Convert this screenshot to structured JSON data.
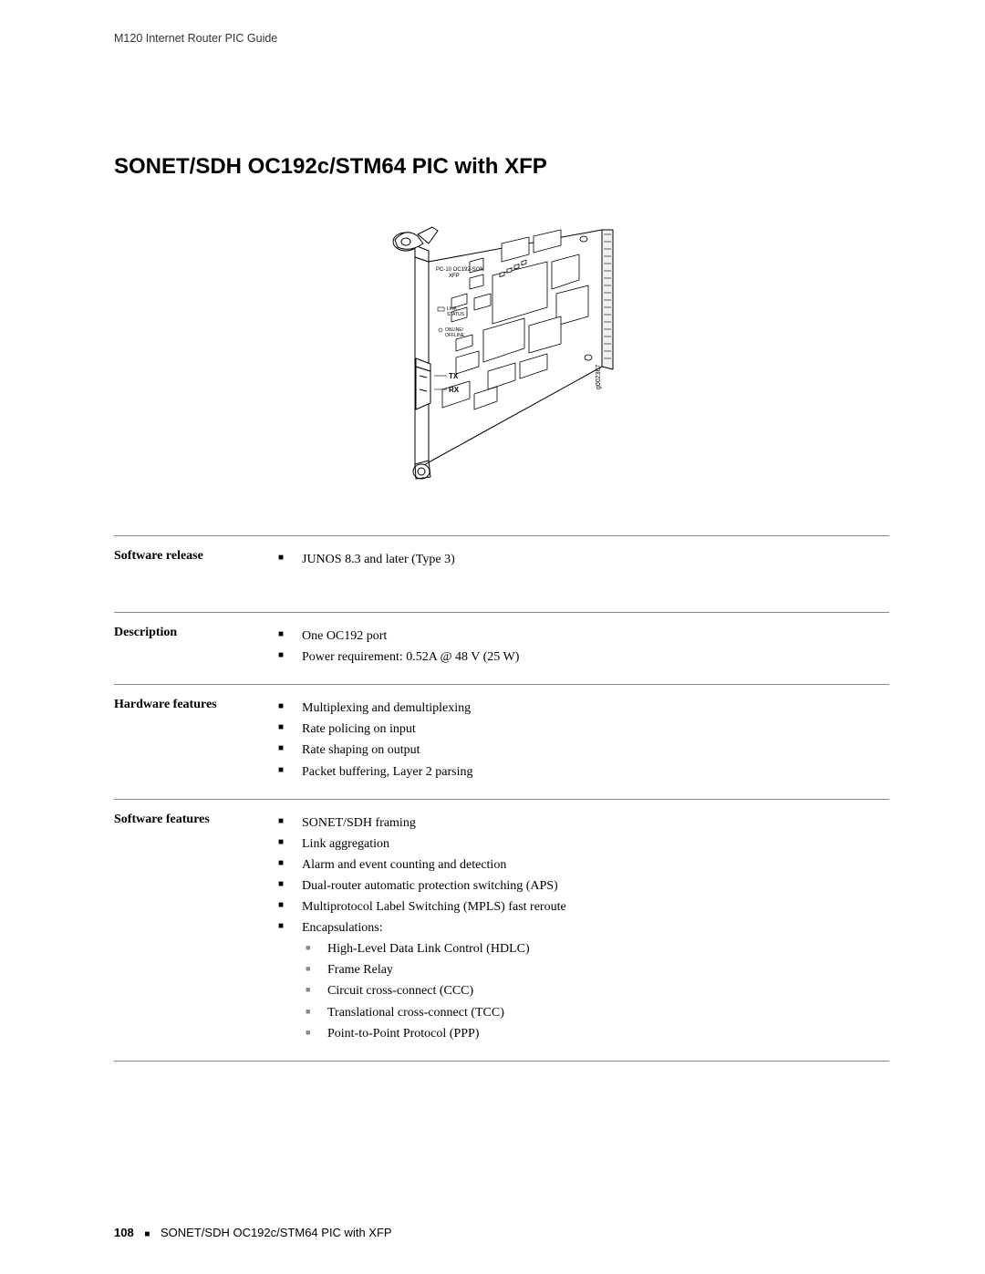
{
  "header": "M120 Internet Router PIC Guide",
  "title": "SONET/SDH OC192c/STM64 PIC with XFP",
  "diagram": {
    "labels": {
      "top_label": "PC-10 OC192-SON\nXFP",
      "link_status": "LINK\nSTATUS",
      "online_offline": "ONLINE/\nOFFLINE",
      "tx": "TX",
      "rx": "RX",
      "ref": "g002367"
    },
    "colors": {
      "stroke": "#000000",
      "fill": "#ffffff",
      "light_fill": "#f8f8f8"
    }
  },
  "specs": [
    {
      "label": "Software release",
      "items": [
        "JUNOS 8.3 and later (Type 3)"
      ],
      "spacer_after": true
    },
    {
      "label": "Description",
      "items": [
        "One OC192 port",
        "Power requirement: 0.52A @ 48 V (25 W)"
      ]
    },
    {
      "label": "Hardware features",
      "items": [
        "Multiplexing and demultiplexing",
        "Rate policing on input",
        "Rate shaping on output",
        "Packet buffering, Layer 2 parsing"
      ]
    },
    {
      "label": "Software features",
      "items": [
        "SONET/SDH framing",
        "Link aggregation",
        "Alarm and event counting and detection",
        "Dual-router automatic protection switching (APS)",
        "Multiprotocol Label Switching (MPLS) fast reroute",
        {
          "text": "Encapsulations:",
          "sub": [
            "High-Level Data Link Control (HDLC)",
            "Frame Relay",
            "Circuit cross-connect (CCC)",
            "Translational cross-connect (TCC)",
            "Point-to-Point Protocol (PPP)"
          ]
        }
      ],
      "last": true
    }
  ],
  "footer": {
    "page": "108",
    "text": "SONET/SDH OC192c/STM64 PIC with XFP"
  }
}
